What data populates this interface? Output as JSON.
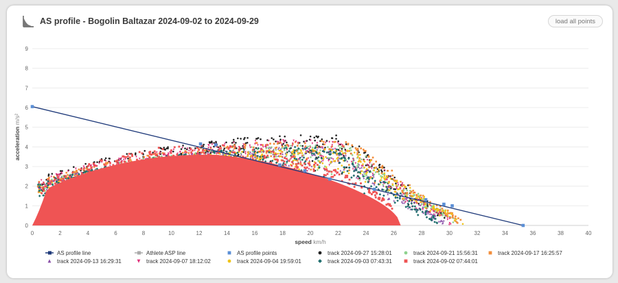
{
  "header": {
    "title": "AS profile - Bogolin Baltazar 2024-09-02 to 2024-09-29",
    "load_all_label": "load all points"
  },
  "chart_data": {
    "type": "scatter",
    "title": "AS profile - Bogolin Baltazar 2024-09-02 to 2024-09-29",
    "xlabel": "speed",
    "xunit": "km/h",
    "ylabel": "acceleration",
    "yunit": "m/s²",
    "xlim": [
      0,
      40
    ],
    "ylim": [
      0,
      9
    ],
    "x_ticks": [
      "0",
      "2",
      "4",
      "6",
      "8",
      "10",
      "12",
      "14",
      "16",
      "18",
      "20",
      "22",
      "24",
      "26",
      "28",
      "30",
      "32",
      "34",
      "36",
      "38",
      "40"
    ],
    "y_ticks": [
      "0",
      "1",
      "2",
      "3",
      "4",
      "5",
      "6",
      "7",
      "8",
      "9"
    ],
    "grid": "horizontal",
    "legend_position": "bottom",
    "as_profile_line": {
      "name": "AS profile line",
      "color": "#1f3a7a",
      "points": [
        [
          0,
          6.05
        ],
        [
          35.3,
          0
        ]
      ]
    },
    "athlete_asp_line": {
      "name": "Athlete ASP line",
      "color": "#aaaaaa"
    },
    "as_profile_points": {
      "name": "AS profile points",
      "color": "#5b8fd6",
      "points": [
        [
          0,
          6.05
        ],
        [
          12.1,
          4.15
        ],
        [
          13.2,
          4.1
        ],
        [
          17.8,
          3.08
        ],
        [
          19.6,
          2.78
        ],
        [
          21.4,
          2.36
        ],
        [
          24.6,
          1.84
        ],
        [
          28.3,
          1.31
        ],
        [
          29.6,
          1.08
        ],
        [
          30.2,
          1.0
        ],
        [
          35.3,
          0
        ]
      ]
    },
    "tracks": [
      {
        "name": "track 2024-09-27 15:28:01",
        "color": "#222222",
        "symbol": "circle",
        "vmax": 30.3,
        "amax": 4.6
      },
      {
        "name": "track 2024-09-21 15:56:31",
        "color": "#8ed28e",
        "symbol": "circle",
        "vmax": 30.6,
        "amax": 4.1
      },
      {
        "name": "track 2024-09-17 16:25:57",
        "color": "#f28e3c",
        "symbol": "square",
        "vmax": 30.9,
        "amax": 4.3
      },
      {
        "name": "track 2024-09-13 16:29:31",
        "color": "#8a4fa8",
        "symbol": "triangle",
        "vmax": 29.6,
        "amax": 4.0
      },
      {
        "name": "track 2024-09-07 18:12:02",
        "color": "#e0307a",
        "symbol": "triangle-down",
        "vmax": 30.1,
        "amax": 4.4
      },
      {
        "name": "track 2024-09-04 19:59:01",
        "color": "#f0c419",
        "symbol": "circle",
        "vmax": 31.0,
        "amax": 3.9
      },
      {
        "name": "track 2024-09-03 07:43:31",
        "color": "#1f6e6e",
        "symbol": "diamond",
        "vmax": 29.3,
        "amax": 4.0
      },
      {
        "name": "track 2024-09-02 07:44:01",
        "color": "#ef5454",
        "symbol": "square",
        "vmax": 26.5,
        "amax": 3.6
      }
    ]
  }
}
